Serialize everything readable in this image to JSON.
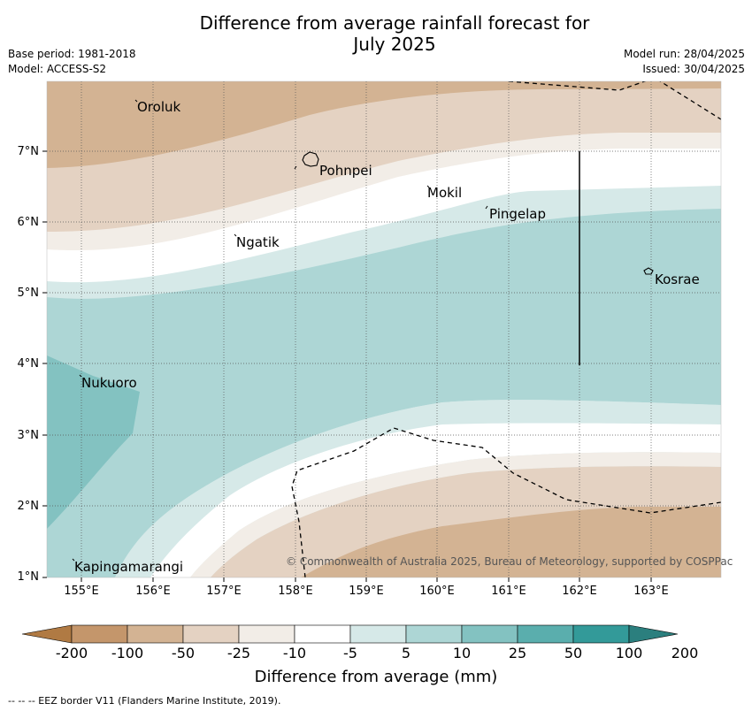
{
  "title_line1": "Difference from average rainfall forecast for",
  "title_line2": "July 2025",
  "meta_left": [
    "Base period: 1981-2018",
    "Model: ACCESS-S2"
  ],
  "meta_right": [
    "Model run: 28/04/2025",
    "Issued: 30/04/2025"
  ],
  "latitude_labels": [
    "7°N",
    "6°N",
    "5°N",
    "4°N",
    "3°N",
    "2°N",
    "1°N"
  ],
  "longitude_labels": [
    "155°E",
    "156°E",
    "157°E",
    "158°E",
    "159°E",
    "160°E",
    "161°E",
    "162°E",
    "163°E"
  ],
  "places": {
    "oroluk": "Oroluk",
    "pohnpei": "Pohnpei",
    "mokil": "Mokil",
    "pingelap": "Pingelap",
    "ngatik": "Ngatik",
    "kosrae": "Kosrae",
    "nukuoro": "Nukuoro",
    "kapingamarangi": "Kapingamarangi"
  },
  "copyright": "© Commonwealth of Australia 2025, Bureau of Meteorology, supported by COSPPac",
  "colorbar": {
    "ticks": [
      "-200",
      "-100",
      "-50",
      "-25",
      "-10",
      "-5",
      "5",
      "10",
      "25",
      "50",
      "100",
      "200"
    ],
    "colors": [
      "#b07a43",
      "#c4966b",
      "#d3b393",
      "#e4d2c2",
      "#f2ede7",
      "#ffffff",
      "#d6e9e8",
      "#add6d5",
      "#83c2c1",
      "#5aaead",
      "#339a99",
      "#2b7f7e"
    ],
    "label": "Difference from average (mm)"
  },
  "eez_note": "--  --  -- EEZ border V11 (Flanders Marine Institute, 2019)."
}
